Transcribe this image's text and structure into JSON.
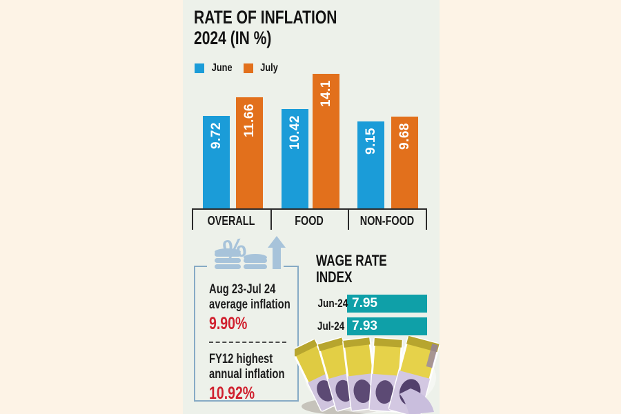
{
  "title": {
    "line1": "RATE OF INFLATION",
    "line2": "2024 (IN %)"
  },
  "colors": {
    "background": "#fdf3e6",
    "panel": "#edf1ea",
    "june_blue": "#1b9cd8",
    "july_orange": "#e2701c",
    "wage_teal": "#0fa0a8",
    "accent_red": "#d0202e",
    "icon_blue": "#a7c3da",
    "box_border": "#86aac5",
    "axis_dark": "#2b2b2b"
  },
  "chart_data": [
    {
      "type": "bar",
      "title": "RATE OF INFLATION 2024 (IN %)",
      "categories": [
        "OVERALL",
        "FOOD",
        "NON-FOOD"
      ],
      "series": [
        {
          "name": "June",
          "color": "#1b9cd8",
          "values": [
            9.72,
            10.42,
            9.15
          ],
          "labels": [
            "9.72",
            "10.42",
            "9.15"
          ]
        },
        {
          "name": "July",
          "color": "#e2701c",
          "values": [
            11.66,
            14.1,
            9.68
          ],
          "labels": [
            "11.66",
            "14.1",
            "9.68"
          ]
        }
      ],
      "legend_position": "top-left",
      "value_labels": "inside-top, rotated 90deg, white",
      "ylim": [
        0,
        14.5
      ],
      "grid": false
    },
    {
      "type": "bar",
      "orientation": "horizontal",
      "title": "WAGE RATE INDEX",
      "categories": [
        "Jun-24",
        "Jul-24"
      ],
      "values": [
        7.95,
        7.93
      ],
      "labels": [
        "7.95",
        "7.93"
      ],
      "bar_color": "#0fa0a8",
      "value_labels": "inside-left, white",
      "xlim": [
        0,
        8.2
      ],
      "grid": false
    }
  ],
  "wage": {
    "title_line1": "WAGE RATE",
    "title_line2": "INDEX"
  },
  "stats": {
    "icon": "coins-percent-rise-icon",
    "items": [
      {
        "label_line1": "Aug 23-Jul 24",
        "label_line2": "average inflation",
        "value": "9.90%"
      },
      {
        "label_line1": "FY12 highest",
        "label_line2": "annual inflation",
        "value": "10.92%"
      }
    ]
  },
  "decor": {
    "photo": "fanned-banknotes"
  }
}
